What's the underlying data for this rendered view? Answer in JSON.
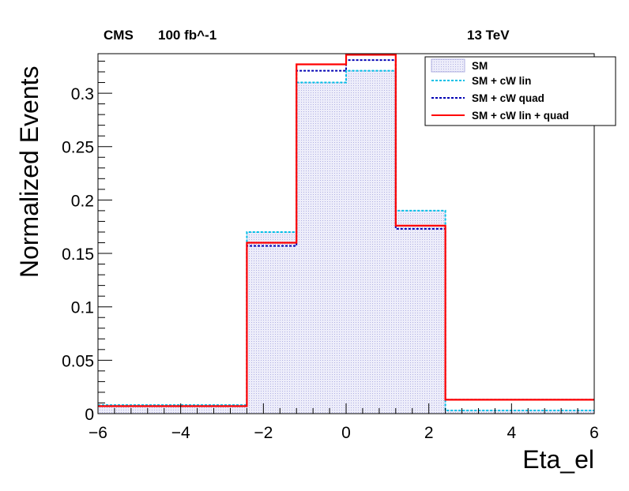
{
  "header": {
    "experiment": "CMS",
    "luminosity": "100 fb^-1",
    "energy": "13 TeV"
  },
  "chart_data": {
    "type": "histogram",
    "xlabel": "Eta_el",
    "ylabel": "Normalized Events",
    "xlim": [
      -6,
      6
    ],
    "ylim": [
      0,
      0.337
    ],
    "bin_edges": [
      -6.0,
      -2.4,
      -1.2,
      0.0,
      1.2,
      2.4,
      6.0
    ],
    "x_ticks": [
      -6,
      -4,
      -2,
      0,
      2,
      4,
      6
    ],
    "x_tick_labels": [
      "−6",
      "−4",
      "−2",
      "0",
      "2",
      "4",
      "6"
    ],
    "y_ticks": [
      0,
      0.05,
      0.1,
      0.15,
      0.2,
      0.25,
      0.3
    ],
    "y_tick_labels": [
      "0",
      "0.05",
      "0.1",
      "0.15",
      "0.2",
      "0.25",
      "0.3"
    ],
    "grid": false,
    "legend_position": "top-right",
    "series": [
      {
        "name": "SM",
        "style": "filled",
        "color": "#c9c9ee",
        "values": [
          0.008,
          0.17,
          0.31,
          0.321,
          0.19,
          0.003
        ]
      },
      {
        "name": "SM + cW lin",
        "style": "dashed",
        "color": "#00c0e6",
        "values": [
          0.008,
          0.17,
          0.31,
          0.321,
          0.19,
          0.003
        ]
      },
      {
        "name": "SM + cW quad",
        "style": "dashed",
        "color": "#0000b3",
        "values": [
          0.007,
          0.157,
          0.321,
          0.331,
          0.173,
          0.013
        ]
      },
      {
        "name": "SM + cW lin + quad",
        "style": "solid",
        "color": "#ff0000",
        "values": [
          0.007,
          0.16,
          0.327,
          0.336,
          0.176,
          0.013
        ]
      }
    ]
  }
}
